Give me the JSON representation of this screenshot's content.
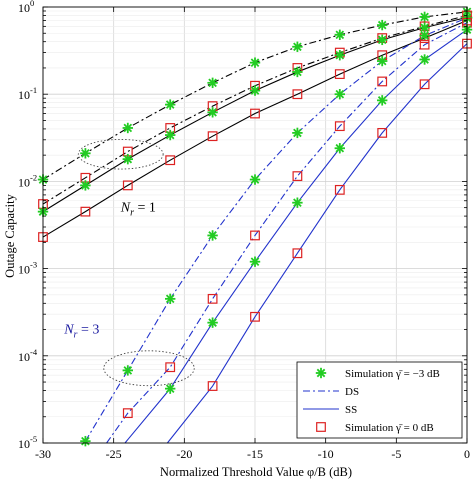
{
  "chart_data": {
    "type": "line",
    "xlabel": "Normalized Threshold Value φ/B (dB)",
    "ylabel": "Outage Capacity",
    "xlim": [
      -30,
      0
    ],
    "ylim": [
      1e-05,
      1
    ],
    "yscale": "log",
    "grid": true,
    "x_ticks": [
      -30,
      -25,
      -20,
      -15,
      -10,
      -5,
      0
    ],
    "x_tick_labels": [
      "-30",
      "-25",
      "-20",
      "-15",
      "-10",
      "-5",
      "0"
    ],
    "y_ticks": [
      1e-05,
      0.0001,
      0.001,
      0.01,
      0.1,
      1
    ],
    "y_tick_labels": [
      {
        "base": "10",
        "exp": "-5"
      },
      {
        "base": "10",
        "exp": "-4"
      },
      {
        "base": "10",
        "exp": "-3"
      },
      {
        "base": "10",
        "exp": "-2"
      },
      {
        "base": "10",
        "exp": "-1"
      },
      {
        "base": "10",
        "exp": "0"
      }
    ],
    "legend_position": "bottom-right",
    "legend": [
      {
        "label": "Simulation γ̄ = −3 dB",
        "kind": "marker-star",
        "color": "#22cc22"
      },
      {
        "label": "DS",
        "kind": "line-dashdot",
        "color": "#2233cc"
      },
      {
        "label": "SS",
        "kind": "line-solid",
        "color": "#2233cc"
      },
      {
        "label": "Simulation γ̄ = 0 dB",
        "kind": "marker-square",
        "color": "#dd2222"
      }
    ],
    "annotations": [
      {
        "text": "N",
        "sub": "r",
        "rest": " = 1",
        "x": -24.5,
        "y": 0.0045,
        "color": "#000000"
      },
      {
        "text": "N",
        "sub": "r",
        "rest": " = 3",
        "x": -28.5,
        "y": 0.00018,
        "color": "#1a1aa0"
      }
    ],
    "series": [
      {
        "group": "Nr=1",
        "style": "dashdot",
        "color": "#000000",
        "x": [
          -30,
          -27,
          -24,
          -21,
          -18,
          -15,
          -12,
          -9,
          -6,
          -3,
          0
        ],
        "y": [
          0.0105,
          0.021,
          0.041,
          0.076,
          0.135,
          0.23,
          0.35,
          0.48,
          0.62,
          0.77,
          0.88
        ]
      },
      {
        "group": "Nr=1",
        "style": "dashdot",
        "color": "#000000",
        "x": [
          -30,
          -27,
          -24,
          -21,
          -18,
          -15,
          -12,
          -9,
          -6,
          -3,
          0
        ],
        "y": [
          0.0055,
          0.011,
          0.022,
          0.041,
          0.073,
          0.125,
          0.2,
          0.3,
          0.44,
          0.6,
          0.8
        ]
      },
      {
        "group": "Nr=1",
        "style": "solid",
        "color": "#000000",
        "x": [
          -30,
          -27,
          -24,
          -21,
          -18,
          -15,
          -12,
          -9,
          -6,
          -3,
          0
        ],
        "y": [
          0.0045,
          0.009,
          0.018,
          0.034,
          0.062,
          0.11,
          0.18,
          0.28,
          0.42,
          0.58,
          0.76
        ]
      },
      {
        "group": "Nr=1",
        "style": "solid",
        "color": "#000000",
        "x": [
          -30,
          -27,
          -24,
          -21,
          -18,
          -15,
          -12,
          -9,
          -6,
          -3,
          0
        ],
        "y": [
          0.0023,
          0.0045,
          0.009,
          0.0175,
          0.033,
          0.06,
          0.1,
          0.17,
          0.28,
          0.44,
          0.7
        ]
      },
      {
        "group": "Nr=3",
        "style": "dashdot",
        "color": "#2233cc",
        "x": [
          -27,
          -24,
          -21,
          -18,
          -15,
          -12,
          -9,
          -6,
          -3,
          0
        ],
        "y": [
          1.05e-05,
          6.8e-05,
          0.00045,
          0.0024,
          0.0105,
          0.036,
          0.1,
          0.24,
          0.47,
          0.75
        ]
      },
      {
        "group": "Nr=3",
        "style": "dashdot",
        "color": "#2233cc",
        "x": [
          -25.5,
          -24,
          -21,
          -18,
          -15,
          -12,
          -9,
          -6,
          -3,
          0
        ],
        "y": [
          1e-05,
          2.2e-05,
          7.4e-05,
          0.00045,
          0.0024,
          0.0115,
          0.043,
          0.14,
          0.37,
          0.66
        ]
      },
      {
        "group": "Nr=3",
        "style": "solid",
        "color": "#2233cc",
        "x": [
          -24.2,
          -21,
          -18,
          -15,
          -12,
          -9,
          -6,
          -3,
          0
        ],
        "y": [
          1e-05,
          4.2e-05,
          0.00024,
          0.0012,
          0.0057,
          0.024,
          0.085,
          0.25,
          0.55
        ]
      },
      {
        "group": "Nr=3",
        "style": "solid",
        "color": "#2233cc",
        "x": [
          -21.2,
          -18,
          -15,
          -12,
          -9,
          -6,
          -3,
          0
        ],
        "y": [
          1e-05,
          4.5e-05,
          0.00028,
          0.0015,
          0.008,
          0.036,
          0.13,
          0.38
        ]
      }
    ],
    "markers": [
      {
        "series": 0,
        "marker": "star",
        "color": "#22cc22"
      },
      {
        "series": 1,
        "marker": "square",
        "color": "#dd2222"
      },
      {
        "series": 2,
        "marker": "star",
        "color": "#22cc22"
      },
      {
        "series": 3,
        "marker": "square",
        "color": "#dd2222"
      },
      {
        "series": 4,
        "marker": "star",
        "color": "#22cc22"
      },
      {
        "series": 5,
        "marker": "square",
        "color": "#dd2222"
      },
      {
        "series": 6,
        "marker": "star",
        "color": "#22cc22"
      },
      {
        "series": 7,
        "marker": "square",
        "color": "#dd2222"
      }
    ],
    "ellipses": [
      {
        "cx": -24.5,
        "cy": 0.0205,
        "rx_data": 3,
        "ry_decades": 0.17
      },
      {
        "cx": -22.5,
        "cy": 7.2e-05,
        "rx_data": 3.2,
        "ry_decades": 0.2
      }
    ]
  }
}
